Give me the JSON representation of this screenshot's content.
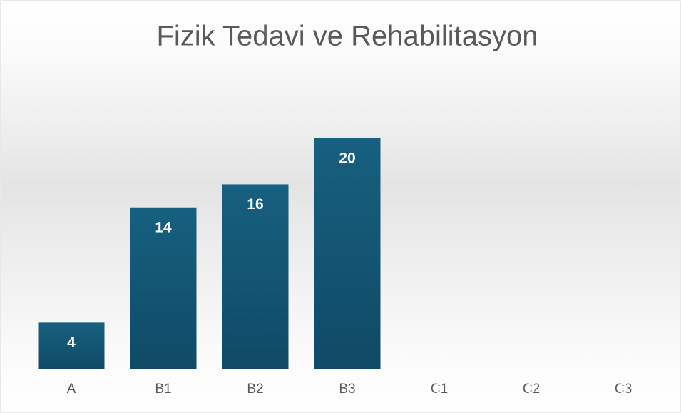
{
  "chart_data": {
    "type": "bar",
    "title": "Fizik Tedavi ve Rehabilitasyon",
    "categories": [
      "A",
      "B1",
      "B2",
      "B3",
      "C1",
      "C2",
      "C3"
    ],
    "values": [
      4,
      14,
      16,
      20,
      0,
      0,
      0
    ],
    "color": "#17607f",
    "ylim": [
      0,
      25
    ]
  }
}
